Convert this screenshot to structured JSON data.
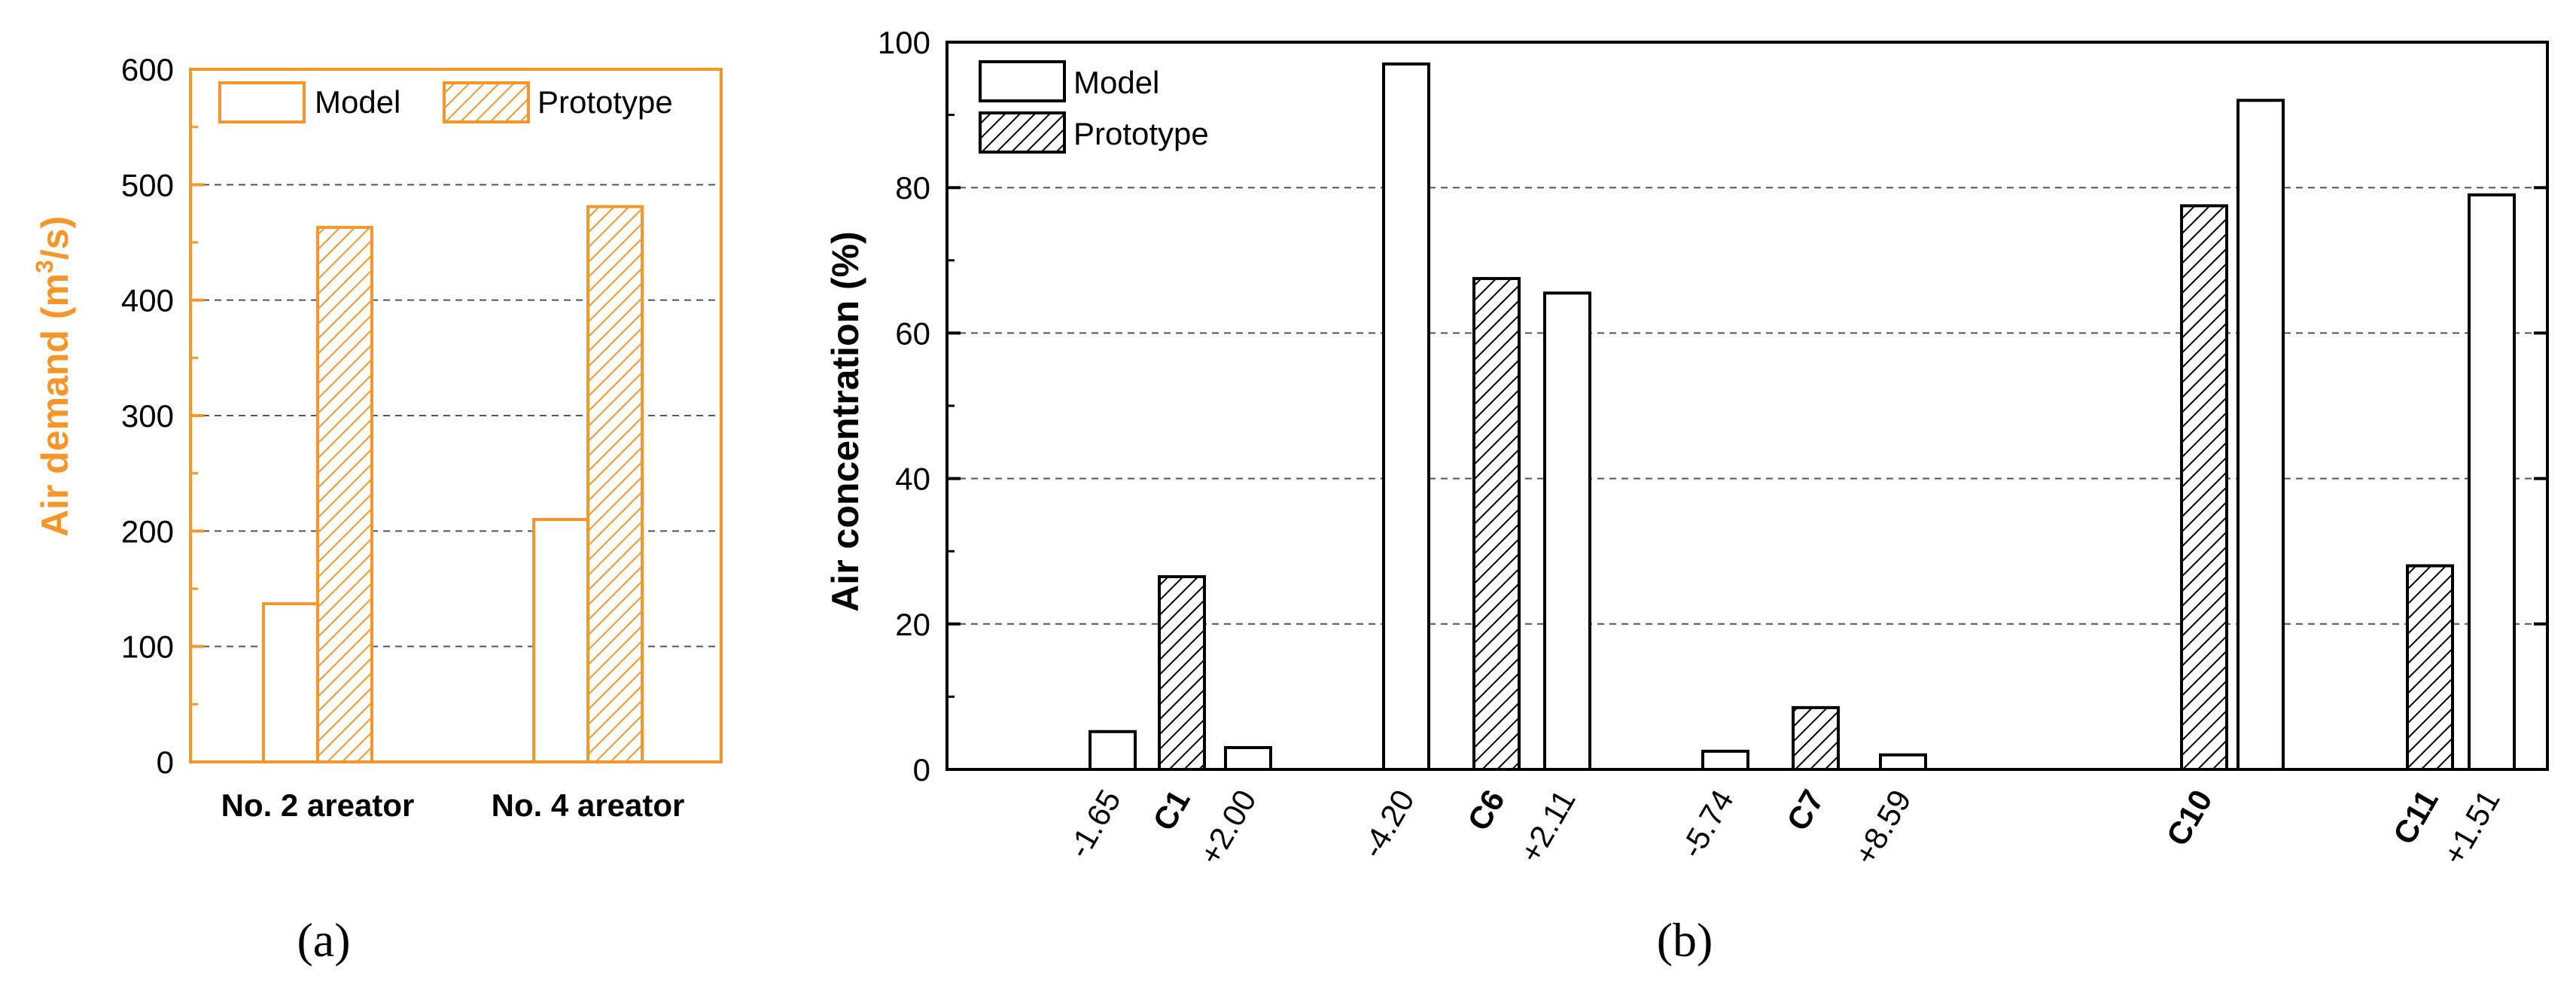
{
  "colors": {
    "panel_a_accent": "#F5962A",
    "panel_b_outline": "#000000",
    "gridline": "#555555",
    "background": "#FFFFFF"
  },
  "chart_data": [
    {
      "type": "bar",
      "panel_label": "(a)",
      "title": "",
      "xlabel": "",
      "ylabel": "Air demand (m³/s)",
      "ylabel_parts": {
        "main": "Air demand (m",
        "sup": "3",
        "tail": "/s)"
      },
      "ylim": [
        0,
        600
      ],
      "yticks": [
        "0",
        "100",
        "200",
        "300",
        "400",
        "500",
        "600"
      ],
      "categories": [
        "No. 2 areator",
        "No. 4 areator"
      ],
      "series": [
        {
          "name": "Model",
          "fill": "hollow",
          "values": [
            137,
            210
          ]
        },
        {
          "name": "Prototype",
          "fill": "hatched",
          "values": [
            463,
            481
          ]
        }
      ],
      "legend": [
        "Model",
        "Prototype"
      ],
      "legend_position": "top",
      "grid": "dashed horizontal"
    },
    {
      "type": "bar",
      "panel_label": "(b)",
      "title": "",
      "xlabel": "",
      "ylabel": "Air concentration (%)",
      "ylim": [
        0,
        100
      ],
      "yticks": [
        "0",
        "20",
        "40",
        "60",
        "80",
        "100"
      ],
      "bars": [
        {
          "label": "-1.65",
          "series": "Model",
          "value": 5.2,
          "label_bold": false
        },
        {
          "label": "C1",
          "series": "Prototype",
          "value": 26.5,
          "label_bold": true
        },
        {
          "label": "+2.00",
          "series": "Model",
          "value": 3.0,
          "label_bold": false
        },
        {
          "label": "-4.20",
          "series": "Model",
          "value": 97.0,
          "label_bold": false
        },
        {
          "label": "C6",
          "series": "Prototype",
          "value": 67.5,
          "label_bold": true
        },
        {
          "label": "+2.11",
          "series": "Model",
          "value": 65.5,
          "label_bold": false
        },
        {
          "label": "-5.74",
          "series": "Model",
          "value": 2.5,
          "label_bold": false
        },
        {
          "label": "C7",
          "series": "Prototype",
          "value": 8.5,
          "label_bold": true
        },
        {
          "label": "+8.59",
          "series": "Model",
          "value": 2.0,
          "label_bold": false
        },
        {
          "label": "C10",
          "series": "Prototype",
          "value": 77.5,
          "label_bold": true
        },
        {
          "label": "C10",
          "series": "Model",
          "value": 92.0,
          "label_bold": true,
          "hide_label": true
        },
        {
          "label": "C11",
          "series": "Prototype",
          "value": 28.0,
          "label_bold": true
        },
        {
          "label": "+1.51",
          "series": "Model",
          "value": 79.0,
          "label_bold": false
        }
      ],
      "legend": [
        "Model",
        "Prototype"
      ],
      "legend_position": "top-left",
      "grid": "dashed horizontal"
    }
  ]
}
